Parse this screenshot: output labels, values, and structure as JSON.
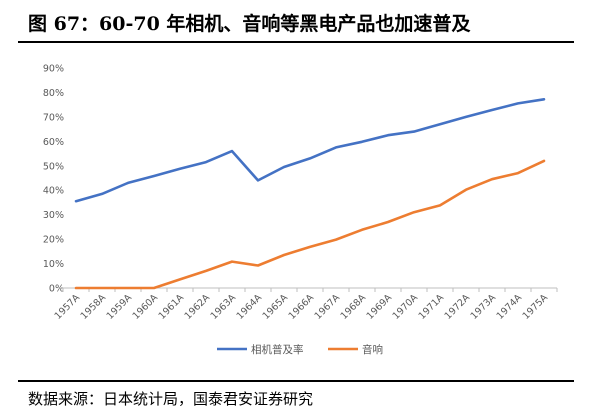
{
  "figure": {
    "title": "图 67：60-70 年相机、音响等黑电产品也加速普及",
    "source": "数据来源：日本统计局，国泰君安证券研究"
  },
  "chart_data": {
    "type": "line",
    "categories": [
      "1957A",
      "1958A",
      "1959A",
      "1960A",
      "1961A",
      "1962A",
      "1963A",
      "1964A",
      "1965A",
      "1966A",
      "1967A",
      "1968A",
      "1969A",
      "1970A",
      "1971A",
      "1972A",
      "1973A",
      "1974A",
      "1975A"
    ],
    "series": [
      {
        "name": "相机普及率",
        "color": "#4472C4",
        "values": [
          35.5,
          38.5,
          43.0,
          45.8,
          48.8,
          51.5,
          56.0,
          44.0,
          49.5,
          53.0,
          57.5,
          59.8,
          62.5,
          64.0,
          67.0,
          70.0,
          72.8,
          75.5,
          77.2
        ]
      },
      {
        "name": "音响",
        "color": "#ED7D31",
        "values": [
          0,
          0,
          0,
          0,
          3.5,
          7.0,
          10.8,
          9.2,
          13.5,
          16.8,
          19.8,
          23.8,
          27.0,
          31.0,
          33.8,
          40.2,
          44.5,
          47.0,
          52.0
        ]
      }
    ],
    "ylim": [
      0,
      90
    ],
    "yticks": [
      "0%",
      "10%",
      "20%",
      "30%",
      "40%",
      "50%",
      "60%",
      "70%",
      "80%",
      "90%"
    ],
    "grid": false,
    "legend_position": "bottom"
  }
}
